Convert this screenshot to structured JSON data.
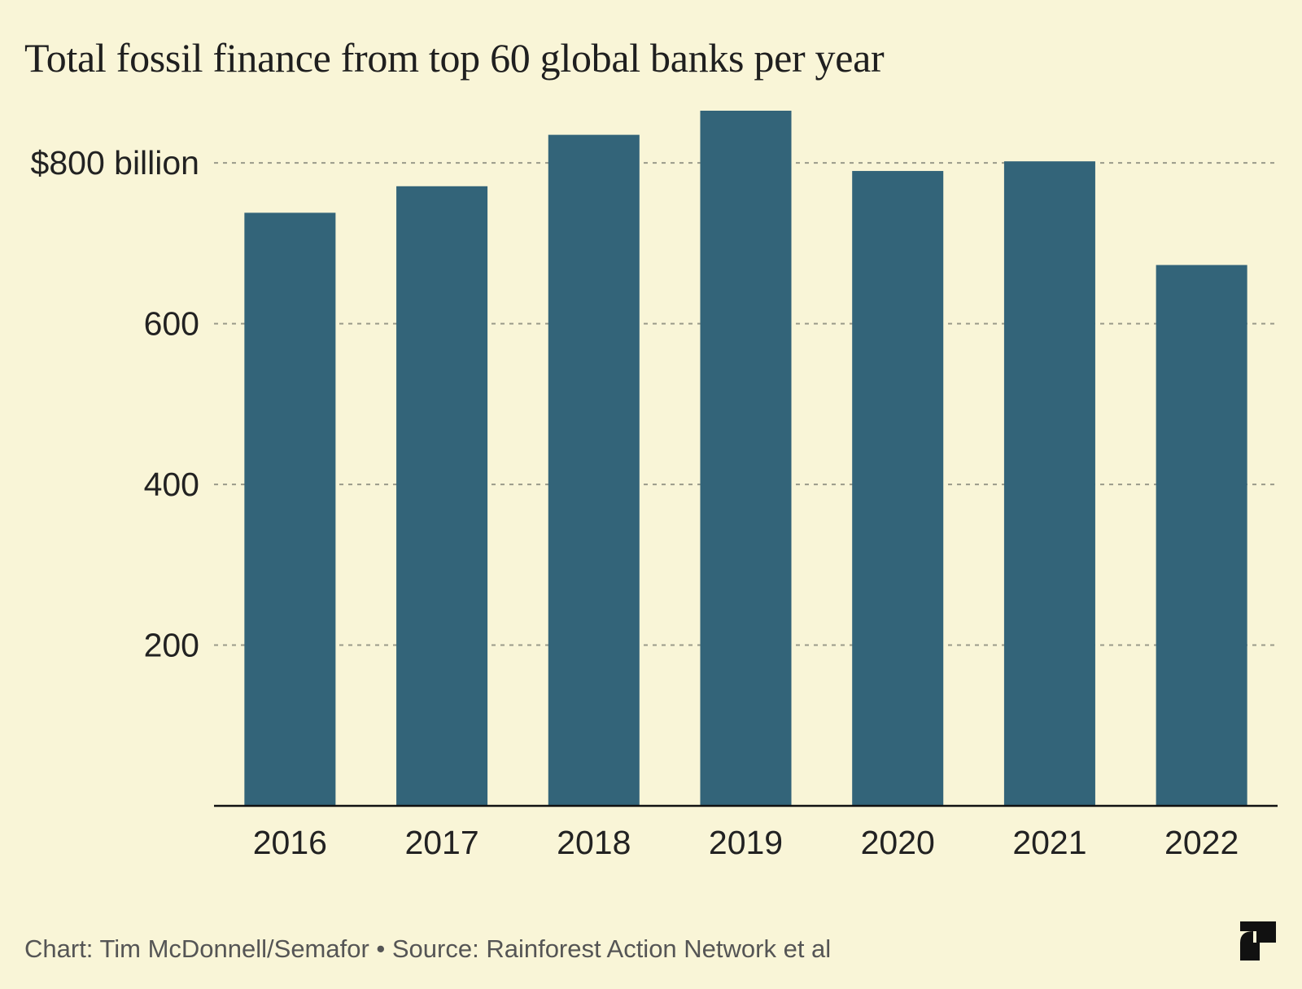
{
  "title": "Total fossil finance from top 60 global banks per year",
  "footer": "Chart: Tim McDonnell/Semafor • Source: Rainforest Action Network et al",
  "logo_icon": "semafor-s-logo-icon",
  "colors": {
    "background": "#f9f5d7",
    "bar": "#336479",
    "grid": "#9a9a8a",
    "axis": "#111111"
  },
  "chart_data": {
    "type": "bar",
    "title": "Total fossil finance from top 60 global banks per year",
    "categories": [
      "2016",
      "2017",
      "2018",
      "2019",
      "2020",
      "2021",
      "2022"
    ],
    "values": [
      738,
      771,
      835,
      865,
      790,
      802,
      673
    ],
    "ylim": [
      0,
      865
    ],
    "yticks": [
      200,
      400,
      600,
      800
    ],
    "ytick_labels": [
      "200",
      "400",
      "600",
      "$800 billion"
    ],
    "xlabel": "",
    "ylabel": "",
    "grid": "horizontal dashed",
    "legend": "none"
  }
}
